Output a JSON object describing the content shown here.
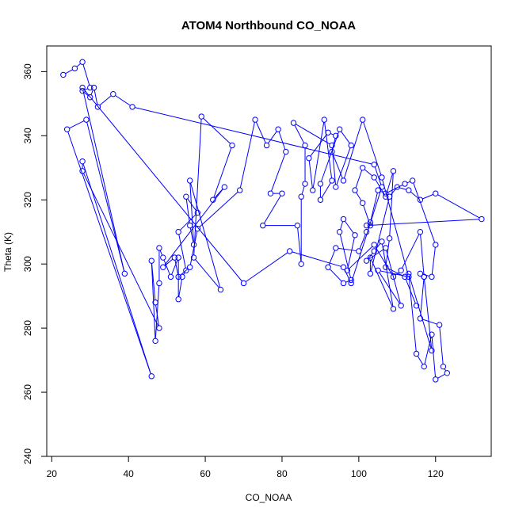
{
  "chart_data": {
    "type": "line",
    "title": "ATOM4 Northbound CO_NOAA",
    "xlabel": "CO_NOAA",
    "ylabel": "Theta (K)",
    "xlim": [
      18.7,
      134.5
    ],
    "ylim": [
      240,
      368
    ],
    "xticks": [
      "20",
      "40",
      "60",
      "80",
      "100",
      "120"
    ],
    "yticks": [
      "240",
      "260",
      "280",
      "300",
      "320",
      "340",
      "360"
    ],
    "grid": false,
    "legend": "none",
    "series": [
      {
        "color": "#0000ff",
        "marker": "open-circle",
        "points": [
          [
            23,
            359
          ],
          [
            26,
            361
          ],
          [
            28,
            363
          ],
          [
            30,
            355
          ],
          [
            28,
            354
          ],
          [
            30,
            352
          ],
          [
            31,
            355
          ],
          [
            32,
            349
          ],
          [
            36,
            353
          ],
          [
            41,
            349
          ],
          [
            104,
            331
          ],
          [
            106,
            324
          ],
          [
            98,
            294
          ],
          [
            96,
            299
          ],
          [
            82,
            304
          ],
          [
            70,
            294
          ],
          [
            28,
            355
          ],
          [
            39,
            297
          ],
          [
            29,
            345
          ],
          [
            24,
            342
          ],
          [
            46,
            265
          ],
          [
            28,
            332
          ],
          [
            28,
            329
          ],
          [
            48,
            280
          ],
          [
            47,
            288
          ],
          [
            46,
            301
          ],
          [
            47,
            276
          ],
          [
            48,
            294
          ],
          [
            48,
            305
          ],
          [
            49,
            302
          ],
          [
            51,
            296
          ],
          [
            53,
            302
          ],
          [
            53,
            289
          ],
          [
            54,
            296
          ],
          [
            55,
            298
          ],
          [
            53,
            310
          ],
          [
            58,
            316
          ],
          [
            55,
            321
          ],
          [
            56,
            312
          ],
          [
            57,
            306
          ],
          [
            56,
            326
          ],
          [
            64,
            292
          ],
          [
            57,
            302
          ],
          [
            59,
            346
          ],
          [
            67,
            337
          ],
          [
            62,
            320
          ],
          [
            65,
            324
          ],
          [
            49,
            299
          ],
          [
            52,
            302
          ],
          [
            53,
            296
          ],
          [
            56,
            299
          ],
          [
            58,
            311
          ],
          [
            69,
            323
          ],
          [
            73,
            345
          ],
          [
            76,
            337
          ],
          [
            79,
            342
          ],
          [
            81,
            335
          ],
          [
            77,
            322
          ],
          [
            80,
            322
          ],
          [
            75,
            312
          ],
          [
            84,
            312
          ],
          [
            85,
            300
          ],
          [
            85,
            321
          ],
          [
            86,
            325
          ],
          [
            86,
            337
          ],
          [
            83,
            344
          ],
          [
            93,
            337
          ],
          [
            94,
            324
          ],
          [
            98,
            337
          ],
          [
            95,
            342
          ],
          [
            90,
            325
          ],
          [
            90,
            320
          ],
          [
            93,
            326
          ],
          [
            91,
            345
          ],
          [
            88,
            323
          ],
          [
            87,
            333
          ],
          [
            92,
            341
          ],
          [
            94,
            340
          ],
          [
            93,
            335
          ],
          [
            96,
            326
          ],
          [
            101,
            345
          ],
          [
            106,
            327
          ],
          [
            113,
            296
          ],
          [
            105,
            298
          ],
          [
            111,
            287
          ],
          [
            107,
            305
          ],
          [
            102,
            301
          ],
          [
            104,
            304
          ],
          [
            106,
            307
          ],
          [
            109,
            286
          ],
          [
            103,
            302
          ],
          [
            103,
            297
          ],
          [
            108,
            321
          ],
          [
            110,
            324
          ],
          [
            113,
            323
          ],
          [
            116,
            320
          ],
          [
            120,
            322
          ],
          [
            132,
            314
          ],
          [
            102,
            312
          ],
          [
            103,
            313
          ],
          [
            105,
            323
          ],
          [
            107,
            322
          ],
          [
            112,
            325
          ],
          [
            114,
            326
          ],
          [
            120,
            306
          ],
          [
            119,
            296
          ],
          [
            116,
            297
          ],
          [
            117,
            296
          ],
          [
            116,
            283
          ],
          [
            121,
            281
          ],
          [
            122,
            268
          ],
          [
            123,
            266
          ],
          [
            120,
            264
          ],
          [
            119,
            278
          ],
          [
            117,
            268
          ],
          [
            115,
            272
          ],
          [
            113,
            297
          ],
          [
            119,
            273
          ],
          [
            117,
            296
          ],
          [
            116,
            310
          ],
          [
            111,
            298
          ],
          [
            109,
            296
          ],
          [
            104,
            306
          ],
          [
            97,
            298
          ],
          [
            99,
            309
          ],
          [
            96,
            314
          ],
          [
            95,
            310
          ],
          [
            98,
            295
          ],
          [
            96,
            294
          ],
          [
            92,
            299
          ],
          [
            94,
            305
          ],
          [
            100,
            304
          ],
          [
            102,
            310
          ],
          [
            103,
            312
          ],
          [
            101,
            319
          ],
          [
            99,
            323
          ],
          [
            101,
            330
          ],
          [
            104,
            327
          ],
          [
            107,
            321
          ],
          [
            109,
            329
          ],
          [
            108,
            308
          ],
          [
            107,
            299
          ],
          [
            112,
            296
          ],
          [
            115,
            287
          ]
        ]
      }
    ]
  }
}
